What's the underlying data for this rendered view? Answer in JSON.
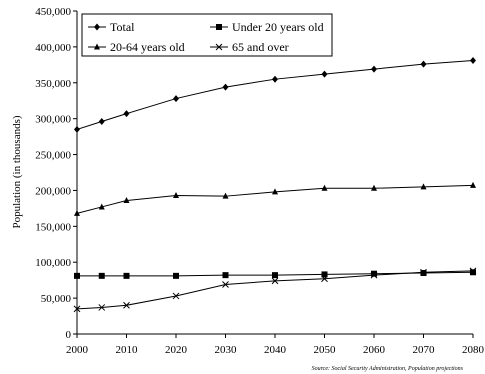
{
  "chart_data": {
    "type": "line",
    "ylabel": "Population (in thousands)",
    "xlabel": "",
    "x": [
      2000,
      2005,
      2010,
      2020,
      2030,
      2040,
      2050,
      2060,
      2070,
      2080
    ],
    "x_ticks": [
      "2000",
      "2010",
      "2020",
      "2030",
      "2040",
      "2050",
      "2060",
      "2070",
      "2080"
    ],
    "xlim": [
      2000,
      2080
    ],
    "ylim": [
      0,
      450000
    ],
    "y_ticks": [
      "0",
      "50,000",
      "100,000",
      "150,000",
      "200,000",
      "250,000",
      "300,000",
      "350,000",
      "400,000",
      "450,000"
    ],
    "grid": false,
    "legend_position": "top",
    "series": [
      {
        "name": "Total",
        "marker": "diamond",
        "values": [
          285000,
          296000,
          307000,
          328000,
          344000,
          355000,
          362000,
          369000,
          376000,
          381000
        ]
      },
      {
        "name": "Under 20 years old",
        "marker": "square",
        "values": [
          81000,
          81000,
          81000,
          81000,
          82000,
          82000,
          83000,
          84000,
          85000,
          86000
        ]
      },
      {
        "name": "20-64 years old",
        "marker": "triangle",
        "values": [
          168000,
          177000,
          186000,
          193000,
          192000,
          198000,
          203000,
          203000,
          205000,
          207000
        ]
      },
      {
        "name": "65 and over",
        "marker": "x",
        "values": [
          35000,
          37000,
          40000,
          53000,
          69000,
          74000,
          77000,
          82000,
          86000,
          88000
        ]
      }
    ],
    "source": "Source: Social Security Administration, Population projections"
  }
}
